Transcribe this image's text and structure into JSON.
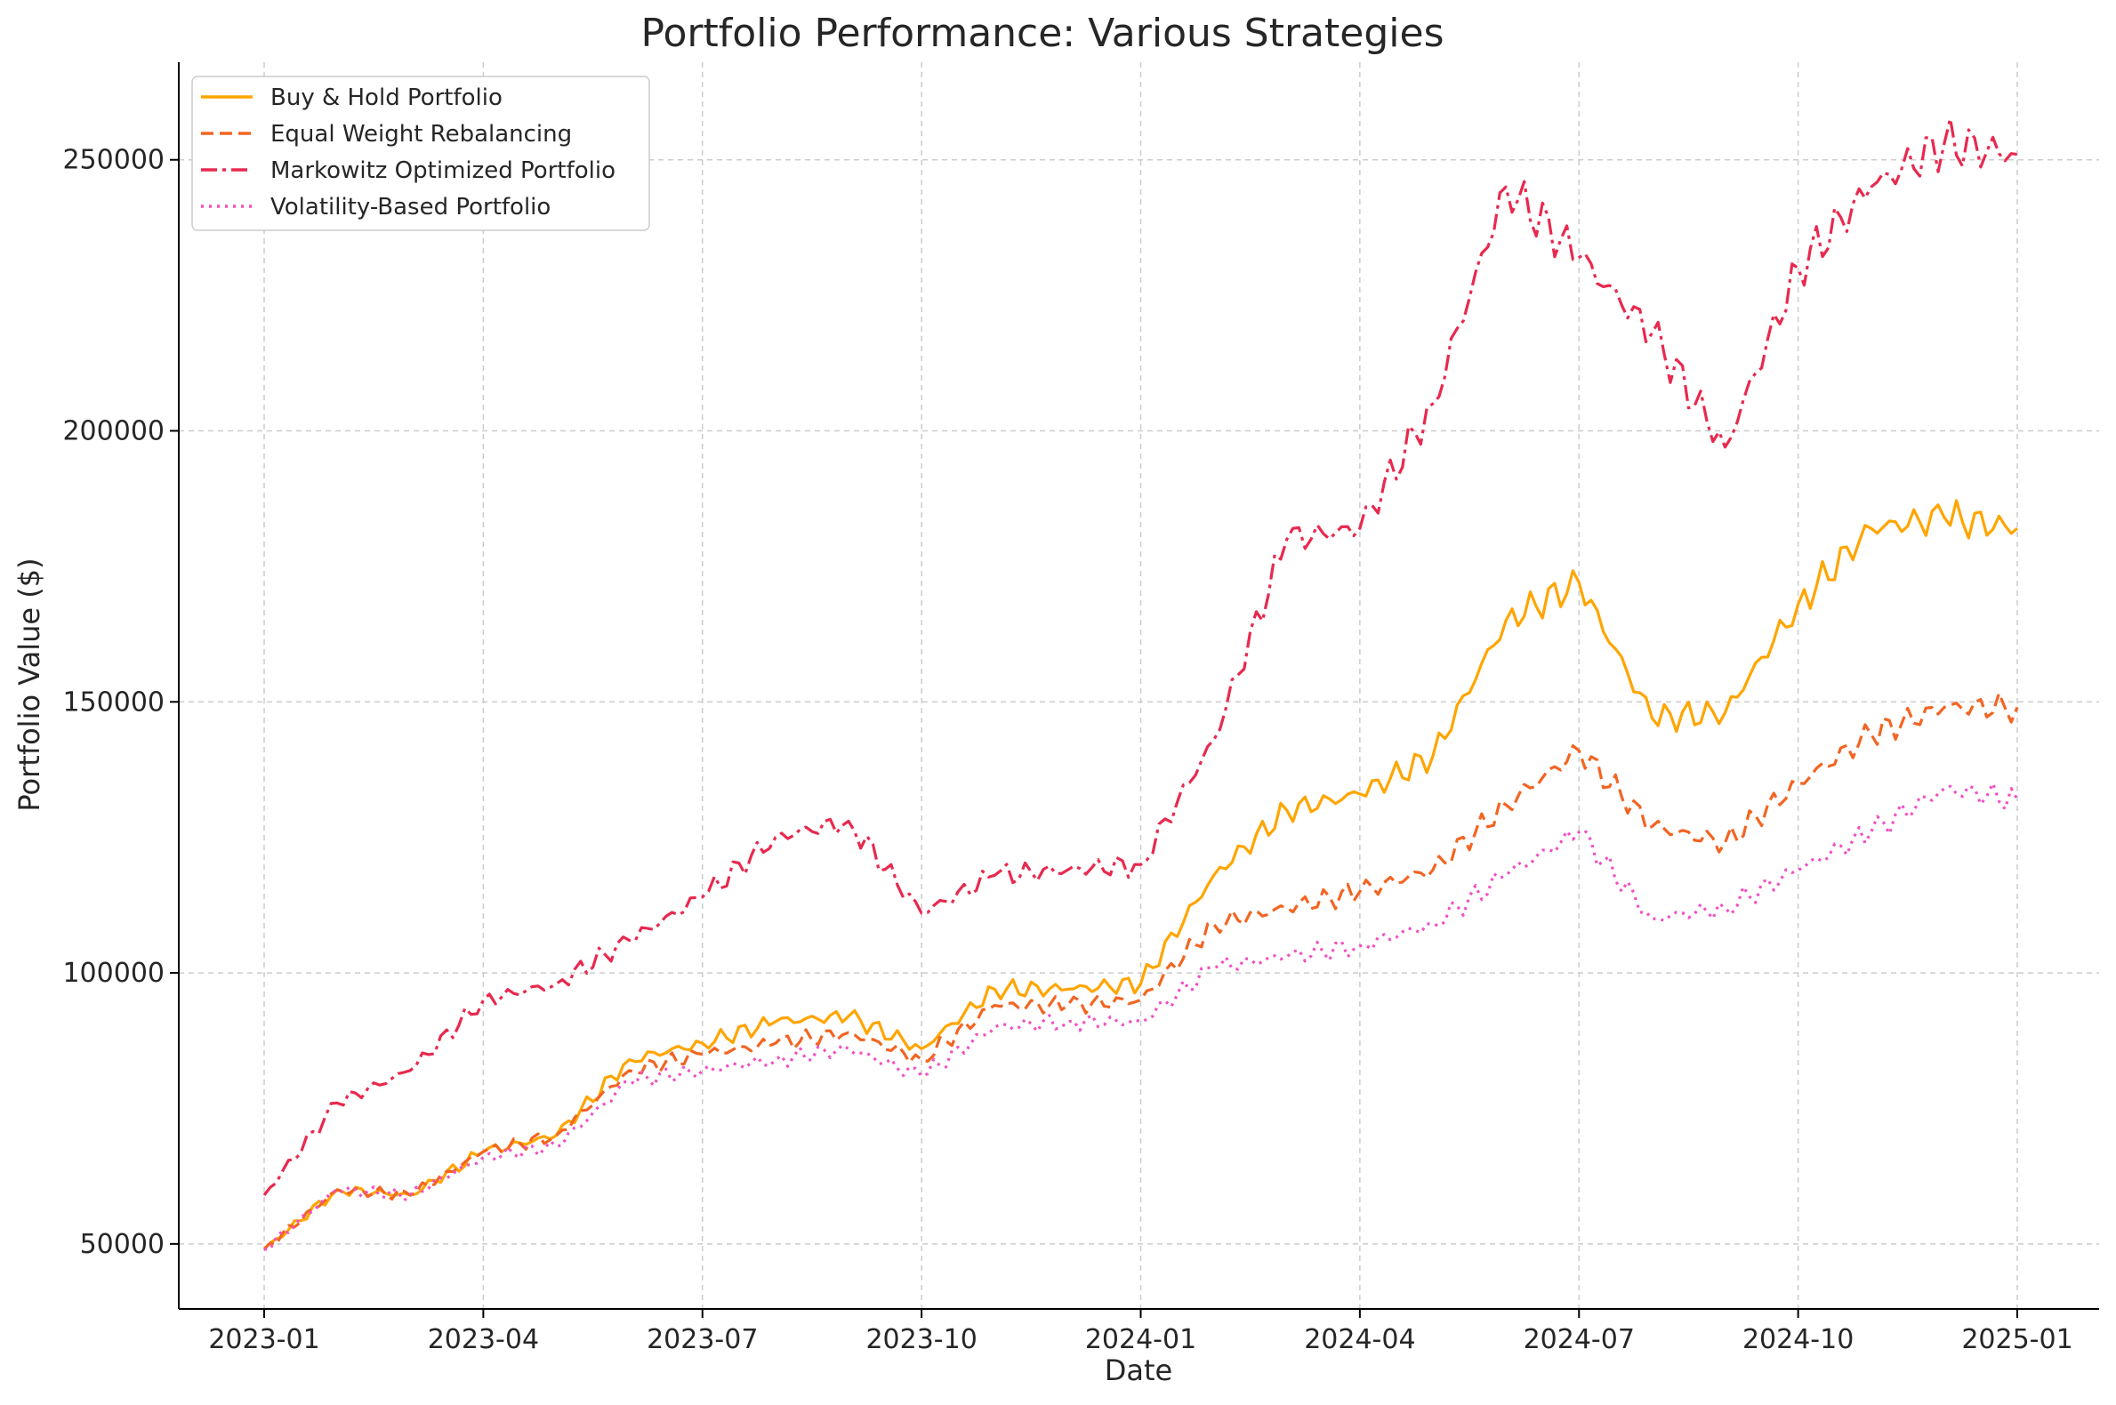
{
  "chart_data": {
    "type": "line",
    "title": "Portfolio Performance: Various Strategies",
    "xlabel": "Date",
    "ylabel": "Portfolio Value ($)",
    "x": [
      "2023-01",
      "2023-02",
      "2023-03",
      "2023-04",
      "2023-05",
      "2023-06",
      "2023-07",
      "2023-08",
      "2023-09",
      "2023-10",
      "2023-11",
      "2023-12",
      "2024-01",
      "2024-02",
      "2024-03",
      "2024-04",
      "2024-05",
      "2024-06",
      "2024-07",
      "2024-08",
      "2024-09",
      "2024-10",
      "2024-11",
      "2024-12",
      "2025-01"
    ],
    "x_ticks": [
      "2023-01",
      "2023-04",
      "2023-07",
      "2023-10",
      "2024-01",
      "2024-04",
      "2024-07",
      "2024-10",
      "2025-01"
    ],
    "y_ticks": [
      50000,
      100000,
      150000,
      200000,
      250000
    ],
    "ylim": [
      38000,
      268000
    ],
    "grid": true,
    "legend_position": "top-left",
    "series": [
      {
        "name": "Buy & Hold Portfolio",
        "color": "#FFA500",
        "style": "solid",
        "values": [
          49000,
          60000,
          59000,
          67000,
          70000,
          84000,
          87000,
          91000,
          92000,
          86000,
          97000,
          97000,
          98000,
          118000,
          130000,
          133000,
          140000,
          165000,
          172000,
          147000,
          148000,
          168000,
          182000,
          184000,
          182000
        ]
      },
      {
        "name": "Equal Weight Rebalancing",
        "color": "#F26522",
        "style": "dashed",
        "values": [
          49000,
          60000,
          59000,
          67000,
          70000,
          82000,
          85000,
          87000,
          89000,
          84000,
          94000,
          94000,
          95000,
          109000,
          112000,
          115000,
          119000,
          131000,
          141000,
          127000,
          124000,
          135000,
          144000,
          149000,
          149000
        ]
      },
      {
        "name": "Markowitz Optimized Portfolio",
        "color": "#E8294E",
        "style": "dashdot",
        "values": [
          59000,
          76000,
          82000,
          95000,
          98000,
          106000,
          114000,
          125000,
          128000,
          111000,
          118000,
          119000,
          120000,
          143000,
          180000,
          182000,
          205000,
          245000,
          232000,
          218000,
          197000,
          230000,
          245000,
          253000,
          251000
        ]
      },
      {
        "name": "Volatility-Based Portfolio",
        "color": "#F24FC3",
        "style": "dotted",
        "values": [
          49000,
          60000,
          59000,
          66000,
          68000,
          80000,
          82000,
          84000,
          86000,
          81000,
          90000,
          91000,
          91000,
          101000,
          103000,
          105000,
          109000,
          118000,
          126000,
          110000,
          112000,
          119000,
          126000,
          134000,
          132000
        ]
      }
    ]
  }
}
